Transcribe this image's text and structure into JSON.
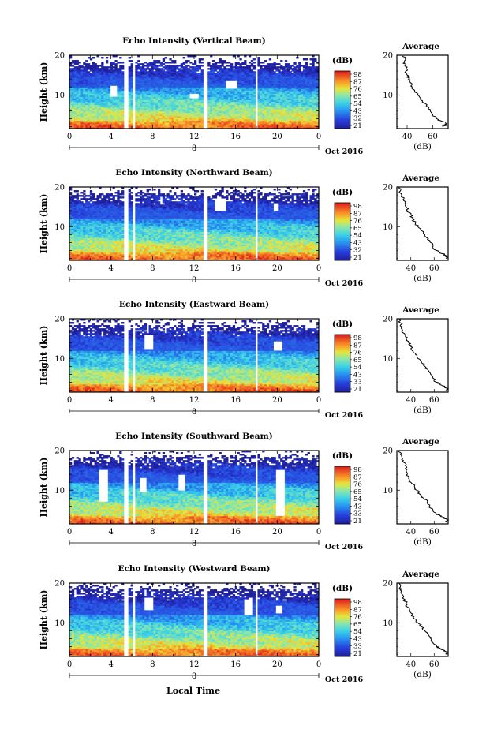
{
  "figure": {
    "xlabel": "Local Time",
    "colorbar_unit": "(dB)",
    "colorbar_ticks": [
      "21",
      "32",
      "43",
      "54",
      "65",
      "76",
      "87",
      "98"
    ],
    "colorbar_ticks_eastward": [
      "21",
      "33",
      "43",
      "54",
      "65",
      "76",
      "87",
      "98"
    ],
    "colorbar_ticks_southward": [
      "21",
      "33",
      "43",
      "54",
      "65",
      "76",
      "87",
      "98"
    ],
    "colorbar_ticks_westward": [
      "21",
      "33",
      "43",
      "54",
      "65",
      "76",
      "87",
      "98"
    ],
    "avg_title": "Average",
    "avg_xlabel": "(dB)",
    "date_label": "Oct 2016",
    "day_label": "8"
  },
  "chart_data": [
    {
      "type": "heatmap",
      "title": "Echo Intensity (Vertical Beam)",
      "xlabel": "",
      "ylabel": "Height (km)",
      "xlim": [
        0,
        24
      ],
      "ylim": [
        1.5,
        20
      ],
      "xticks": [
        "0",
        "4",
        "8",
        "12",
        "16",
        "20",
        "0"
      ],
      "yticks": [
        "10",
        "20"
      ],
      "data_gaps_hours": [
        [
          5.3,
          5.75
        ],
        [
          6.1,
          6.4
        ],
        [
          12.8,
          13.2
        ],
        [
          17.8,
          18.2
        ]
      ],
      "colorbar": {
        "label": "(dB)",
        "min": 21,
        "max": 98
      },
      "average_profile": {
        "title": "Average",
        "xlabel": "(dB)",
        "xticks": [
          "40",
          "60"
        ],
        "xlim": [
          32,
          72
        ],
        "yticks": [
          "10",
          "20"
        ],
        "height_km": [
          2,
          2.5,
          3,
          3.5,
          4,
          5,
          6,
          7,
          8,
          9,
          10,
          11,
          12,
          13,
          14,
          15,
          16,
          17,
          18,
          19,
          20
        ],
        "value_db": [
          68,
          71,
          70,
          66,
          63,
          60,
          58,
          56,
          53,
          51,
          48,
          46,
          44,
          43,
          41,
          40,
          39,
          40,
          37,
          39,
          36
        ]
      }
    },
    {
      "type": "heatmap",
      "title": "Echo Intensity (Northward Beam)",
      "xlabel": "",
      "ylabel": "Height (km)",
      "xlim": [
        0,
        24
      ],
      "ylim": [
        1.5,
        20
      ],
      "xticks": [
        "0",
        "4",
        "8",
        "12",
        "16",
        "20",
        "0"
      ],
      "yticks": [
        "10",
        "20"
      ],
      "data_gaps_hours": [
        [
          5.3,
          5.75
        ],
        [
          6.1,
          6.4
        ],
        [
          12.8,
          13.2
        ],
        [
          17.8,
          18.2
        ]
      ],
      "colorbar": {
        "label": "(dB)",
        "min": 21,
        "max": 98
      },
      "average_profile": {
        "title": "Average",
        "xlabel": "(dB)",
        "xticks": [
          "40",
          "60"
        ],
        "xlim": [
          28,
          72
        ],
        "yticks": [
          "10",
          "20"
        ],
        "height_km": [
          2,
          2.5,
          3,
          3.5,
          4,
          5,
          6,
          7,
          8,
          9,
          10,
          11,
          12,
          13,
          14,
          15,
          16,
          17,
          18,
          19,
          20
        ],
        "value_db": [
          70,
          71,
          69,
          65,
          62,
          59,
          57,
          55,
          52,
          49,
          46,
          44,
          41,
          40,
          37,
          36,
          35,
          34,
          32,
          31,
          30
        ]
      }
    },
    {
      "type": "heatmap",
      "title": "Echo Intensity (Eastward Beam)",
      "xlabel": "",
      "ylabel": "Height (km)",
      "xlim": [
        0,
        24
      ],
      "ylim": [
        1.5,
        20
      ],
      "xticks": [
        "0",
        "4",
        "8",
        "12",
        "16",
        "20",
        "0"
      ],
      "yticks": [
        "10",
        "20"
      ],
      "data_gaps_hours": [
        [
          5.3,
          5.75
        ],
        [
          6.1,
          6.4
        ],
        [
          12.8,
          13.2
        ],
        [
          17.8,
          18.2
        ]
      ],
      "colorbar": {
        "label": "(dB)",
        "min": 21,
        "max": 98
      },
      "average_profile": {
        "title": "Average",
        "xlabel": "(dB)",
        "xticks": [
          "40",
          "60"
        ],
        "xlim": [
          28,
          72
        ],
        "yticks": [
          "10",
          "20"
        ],
        "height_km": [
          2,
          2.5,
          3,
          3.5,
          4,
          5,
          6,
          7,
          8,
          9,
          10,
          11,
          12,
          13,
          14,
          15,
          16,
          17,
          18,
          19,
          20
        ],
        "value_db": [
          70,
          71,
          69,
          65,
          62,
          59,
          57,
          55,
          52,
          49,
          46,
          44,
          41,
          40,
          38,
          36,
          35,
          33,
          32,
          31,
          30
        ]
      }
    },
    {
      "type": "heatmap",
      "title": "Echo Intensity (Southward Beam)",
      "xlabel": "",
      "ylabel": "Height (km)",
      "xlim": [
        0,
        24
      ],
      "ylim": [
        1.5,
        20
      ],
      "xticks": [
        "0",
        "4",
        "8",
        "12",
        "16",
        "20",
        "0"
      ],
      "yticks": [
        "10",
        "20"
      ],
      "data_gaps_hours": [
        [
          5.3,
          5.75
        ],
        [
          6.1,
          6.4
        ],
        [
          12.8,
          13.2
        ],
        [
          17.8,
          18.2
        ]
      ],
      "colorbar": {
        "label": "(dB)",
        "min": 21,
        "max": 98
      },
      "average_profile": {
        "title": "Average",
        "xlabel": "(dB)",
        "xticks": [
          "40",
          "60"
        ],
        "xlim": [
          28,
          72
        ],
        "yticks": [
          "10",
          "20"
        ],
        "height_km": [
          2,
          2.5,
          3,
          3.5,
          4,
          5,
          6,
          7,
          8,
          9,
          10,
          11,
          12,
          13,
          14,
          15,
          16,
          17,
          18,
          19,
          20
        ],
        "value_db": [
          70,
          72,
          69,
          66,
          62,
          59,
          56,
          54,
          51,
          48,
          45,
          43,
          40,
          38,
          37,
          36,
          36,
          34,
          33,
          31,
          30
        ]
      }
    },
    {
      "type": "heatmap",
      "title": "Echo Intensity (Westward Beam)",
      "xlabel": "Local Time",
      "ylabel": "Height (km)",
      "xlim": [
        0,
        24
      ],
      "ylim": [
        1.5,
        20
      ],
      "xticks": [
        "0",
        "4",
        "8",
        "12",
        "16",
        "20",
        "0"
      ],
      "yticks": [
        "10",
        "20"
      ],
      "data_gaps_hours": [
        [
          5.3,
          5.75
        ],
        [
          6.1,
          6.4
        ],
        [
          12.8,
          13.2
        ],
        [
          17.8,
          18.2
        ]
      ],
      "colorbar": {
        "label": "(dB)",
        "min": 21,
        "max": 98
      },
      "average_profile": {
        "title": "Average",
        "xlabel": "(dB)",
        "xticks": [
          "40",
          "60"
        ],
        "xlim": [
          28,
          72
        ],
        "yticks": [
          "10",
          "20"
        ],
        "height_km": [
          2,
          2.5,
          3,
          3.5,
          4,
          5,
          6,
          7,
          8,
          9,
          10,
          11,
          12,
          13,
          14,
          15,
          16,
          17,
          18,
          19,
          20
        ],
        "value_db": [
          70,
          71,
          69,
          65,
          62,
          59,
          57,
          55,
          52,
          49,
          46,
          43,
          41,
          39,
          37,
          36,
          34,
          33,
          32,
          31,
          30
        ]
      }
    }
  ]
}
